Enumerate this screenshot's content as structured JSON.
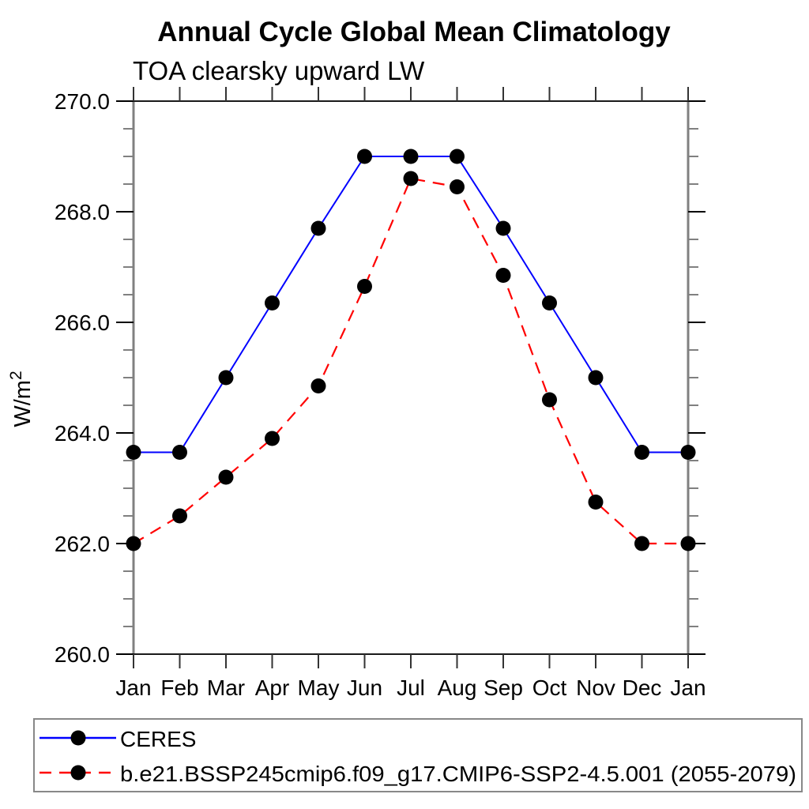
{
  "title": "Annual Cycle Global Mean Climatology",
  "subtitle": "TOA clearsky upward LW",
  "ylabel_display": {
    "base": "W/m",
    "exp": "2"
  },
  "colors": {
    "ceres_line": "#0000ff",
    "model_line": "#ff0000",
    "marker": "#000000",
    "frame_vertical": "#808080",
    "frame_horizontal": "#1a1a1a",
    "minor_tick": "#808080",
    "major_tick": "#000000",
    "legend_border": "#888888"
  },
  "chart_data": {
    "type": "line",
    "title": "Annual Cycle Global Mean Climatology",
    "subtitle": "TOA clearsky upward LW",
    "xlabel": "",
    "ylabel": "W/m²",
    "x_tick_labels": [
      "Jan",
      "Feb",
      "Mar",
      "Apr",
      "May",
      "Jun",
      "Jul",
      "Aug",
      "Sep",
      "Oct",
      "Nov",
      "Dec",
      "Jan"
    ],
    "ylim": [
      260.0,
      270.0
    ],
    "y_major_ticks": [
      260.0,
      262.0,
      264.0,
      266.0,
      268.0,
      270.0
    ],
    "y_tick_labels": [
      "260.0",
      "262.0",
      "264.0",
      "266.0",
      "268.0",
      "270.0"
    ],
    "y_minor_step": 0.5,
    "grid": false,
    "legend_position": "bottom-left-box",
    "marker": "filled-circle",
    "marker_color": "#000000",
    "series": [
      {
        "name": "CERES",
        "color": "#0000ff",
        "line_style": "solid",
        "values": [
          263.65,
          263.65,
          265.0,
          266.35,
          267.7,
          269.0,
          269.0,
          269.0,
          267.7,
          266.35,
          265.0,
          263.65,
          263.65
        ]
      },
      {
        "name": "b.e21.BSSP245cmip6.f09_g17.CMIP6-SSP2-4.5.001 (2055-2079)",
        "color": "#ff0000",
        "line_style": "dashed",
        "values": [
          262.0,
          262.5,
          263.2,
          263.9,
          264.85,
          266.65,
          268.6,
          268.45,
          266.85,
          264.6,
          262.75,
          262.0,
          262.0
        ]
      }
    ]
  }
}
